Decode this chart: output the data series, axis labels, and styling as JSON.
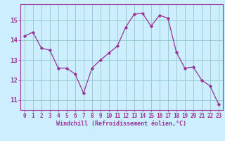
{
  "x": [
    0,
    1,
    2,
    3,
    4,
    5,
    6,
    7,
    8,
    9,
    10,
    11,
    12,
    13,
    14,
    15,
    16,
    17,
    18,
    19,
    20,
    21,
    22,
    23
  ],
  "y": [
    14.2,
    14.4,
    13.6,
    13.5,
    12.6,
    12.6,
    12.3,
    11.35,
    12.6,
    13.0,
    13.35,
    13.7,
    14.65,
    15.3,
    15.35,
    14.7,
    15.25,
    15.1,
    13.4,
    12.6,
    12.65,
    12.0,
    11.7,
    10.8
  ],
  "line_color": "#993399",
  "marker": "D",
  "markersize": 2.2,
  "linewidth": 0.9,
  "bg_color": "#cceeff",
  "grid_color": "#99cccc",
  "xlabel": "Windchill (Refroidissement éolien,°C)",
  "xlabel_color": "#993399",
  "tick_color": "#993399",
  "ylim": [
    10.5,
    15.8
  ],
  "yticks": [
    11,
    12,
    13,
    14,
    15
  ],
  "xlim": [
    -0.5,
    23.5
  ],
  "tick_fontsize": 5.5,
  "ytick_fontsize": 6.5,
  "xlabel_fontsize": 6.0
}
